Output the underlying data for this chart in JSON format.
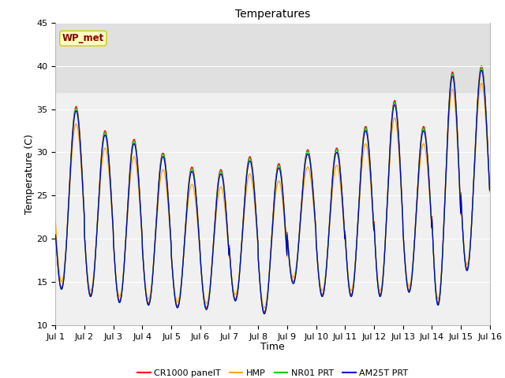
{
  "title": "Temperatures",
  "xlabel": "Time",
  "ylabel": "Temperature (C)",
  "ylim": [
    10,
    45
  ],
  "xlim": [
    0,
    15
  ],
  "xtick_labels": [
    "Jul 1",
    "Jul 2",
    "Jul 3",
    "Jul 4",
    "Jul 5",
    "Jul 6",
    "Jul 7",
    "Jul 8",
    "Jul 9",
    "Jul 10",
    "Jul 11",
    "Jul 12",
    "Jul 13",
    "Jul 14",
    "Jul 15",
    "Jul 16"
  ],
  "ytick_vals": [
    10,
    15,
    20,
    25,
    30,
    35,
    40,
    45
  ],
  "shaded_band": [
    37,
    45
  ],
  "annotation_text": "WP_met",
  "annotation_color": "#8B0000",
  "annotation_bg": "#FFFFC0",
  "annotation_border": "#CCCC00",
  "series_colors": [
    "#FF0000",
    "#FFA500",
    "#00CC00",
    "#0000CC"
  ],
  "series_labels": [
    "CR1000 panelT",
    "HMP",
    "NR01 PRT",
    "AM25T PRT"
  ],
  "bg_color": "#FFFFFF",
  "plot_bg": "#F0F0F0",
  "shaded_bg": "#E0E0E0",
  "title_fontsize": 10,
  "axis_fontsize": 9,
  "tick_fontsize": 8
}
